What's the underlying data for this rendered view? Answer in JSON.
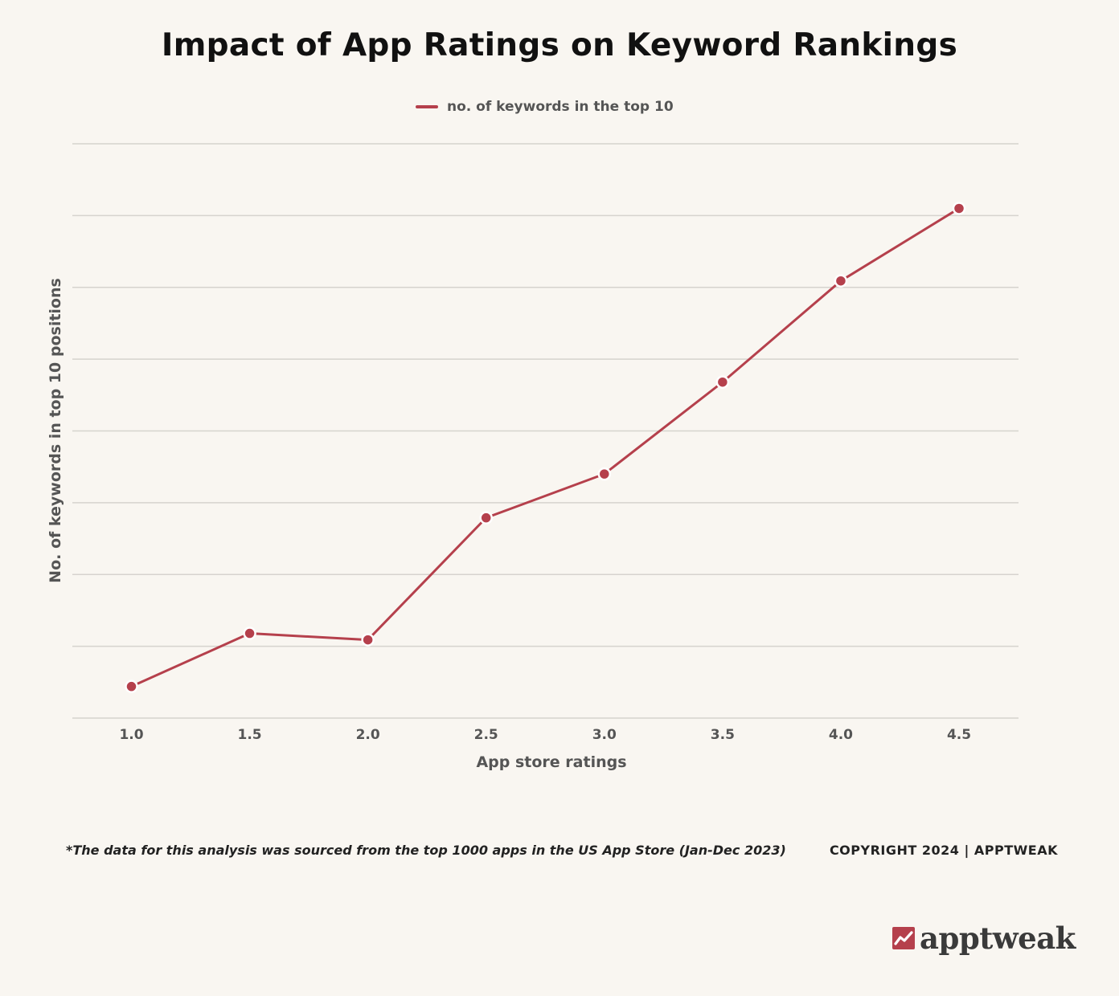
{
  "title": "Impact of App Ratings on Keyword Rankings",
  "chart_data": {
    "type": "line",
    "title": "Impact of App Ratings on Keyword Rankings",
    "xlabel": "App store ratings",
    "ylabel": "No. of keywords in top 10 positions",
    "categories": [
      "1.0",
      "1.5",
      "2.0",
      "2.5",
      "3.0",
      "3.5",
      "4.0",
      "4.5"
    ],
    "series": [
      {
        "name": "no. of keywords in the top 10",
        "values": [
          0.44,
          1.18,
          1.09,
          2.79,
          3.4,
          4.68,
          6.09,
          7.1
        ]
      }
    ],
    "ylim": [
      0,
      8
    ],
    "y_gridlines": [
      0,
      1,
      2,
      3,
      4,
      5,
      6,
      7,
      8
    ],
    "y_tick_labels_shown": false,
    "grid": true,
    "legend_position": "top-center",
    "colors": {
      "line": "#b5404c",
      "marker_fill": "#b5404c",
      "marker_stroke": "#ffffff",
      "grid": "#d6d3ce",
      "background": "#f9f6f1"
    }
  },
  "footnote": "*The data for this analysis was sourced from the top 1000 apps in the US App Store (Jan-Dec 2023)",
  "copyright": "COPYRIGHT 2024 | APPTWEAK",
  "brand": {
    "name": "apptweak",
    "icon": "trend-up-icon",
    "color": "#b5404c"
  }
}
